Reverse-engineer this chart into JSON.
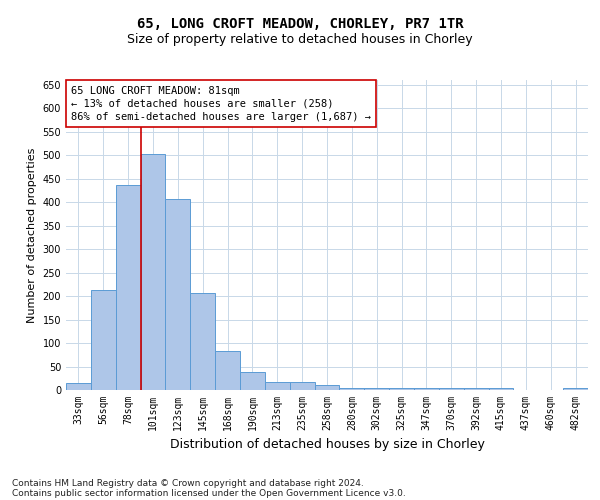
{
  "title1": "65, LONG CROFT MEADOW, CHORLEY, PR7 1TR",
  "title2": "Size of property relative to detached houses in Chorley",
  "xlabel": "Distribution of detached houses by size in Chorley",
  "ylabel": "Number of detached properties",
  "categories": [
    "33sqm",
    "56sqm",
    "78sqm",
    "101sqm",
    "123sqm",
    "145sqm",
    "168sqm",
    "190sqm",
    "213sqm",
    "235sqm",
    "258sqm",
    "280sqm",
    "302sqm",
    "325sqm",
    "347sqm",
    "370sqm",
    "392sqm",
    "415sqm",
    "437sqm",
    "460sqm",
    "482sqm"
  ],
  "values": [
    15,
    213,
    437,
    503,
    407,
    207,
    84,
    38,
    18,
    17,
    10,
    5,
    4,
    4,
    4,
    4,
    4,
    4,
    1,
    1,
    4
  ],
  "bar_color": "#aec6e8",
  "bar_edge_color": "#5b9bd5",
  "vline_color": "#cc0000",
  "vline_x_index": 2.5,
  "annotation_text": "65 LONG CROFT MEADOW: 81sqm\n← 13% of detached houses are smaller (258)\n86% of semi-detached houses are larger (1,687) →",
  "annotation_box_facecolor": "#ffffff",
  "annotation_box_edgecolor": "#cc0000",
  "ylim": [
    0,
    660
  ],
  "yticks": [
    0,
    50,
    100,
    150,
    200,
    250,
    300,
    350,
    400,
    450,
    500,
    550,
    600,
    650
  ],
  "footnote1": "Contains HM Land Registry data © Crown copyright and database right 2024.",
  "footnote2": "Contains public sector information licensed under the Open Government Licence v3.0.",
  "background_color": "#ffffff",
  "grid_color": "#c8d8e8",
  "title1_fontsize": 10,
  "title2_fontsize": 9,
  "xlabel_fontsize": 9,
  "ylabel_fontsize": 8,
  "tick_fontsize": 7,
  "annotation_fontsize": 7.5,
  "footnote_fontsize": 6.5
}
